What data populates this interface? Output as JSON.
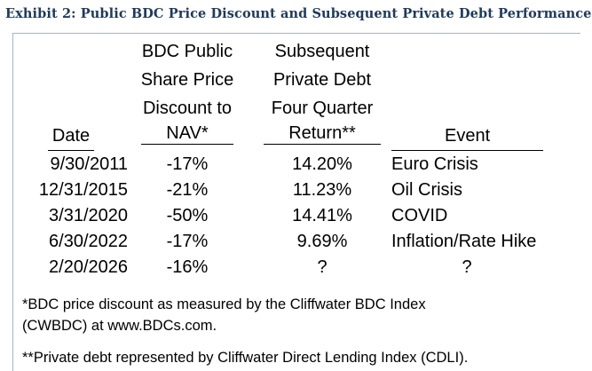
{
  "title": "Exhibit 2: Public BDC Price Discount and Subsequent Private Debt Performance",
  "headers": {
    "date": [
      "Date"
    ],
    "discount": [
      "BDC Public",
      "Share Price",
      "Discount to",
      "NAV*"
    ],
    "return": [
      "Subsequent",
      "Private Debt",
      "Four Quarter",
      "Return**"
    ],
    "event": [
      "Event"
    ]
  },
  "rows": [
    {
      "date": "9/30/2011",
      "discount": "-17%",
      "return": "14.20%",
      "event": "Euro Crisis"
    },
    {
      "date": "12/31/2015",
      "discount": "-21%",
      "return": "11.23%",
      "event": "Oil Crisis"
    },
    {
      "date": "3/31/2020",
      "discount": "-50%",
      "return": "14.41%",
      "event": "COVID"
    },
    {
      "date": "6/30/2022",
      "discount": "-17%",
      "return": "9.69%",
      "event": "Inflation/Rate Hike"
    },
    {
      "date": "2/20/2026",
      "discount": "-16%",
      "return": "?",
      "event": "?"
    }
  ],
  "footnotes": [
    "*BDC price discount as measured by the Cliffwater BDC Index",
    "(CWBDC) at www.BDCs.com.",
    "**Private debt represented by Cliffwater Direct Lending Index (CDLI)."
  ]
}
